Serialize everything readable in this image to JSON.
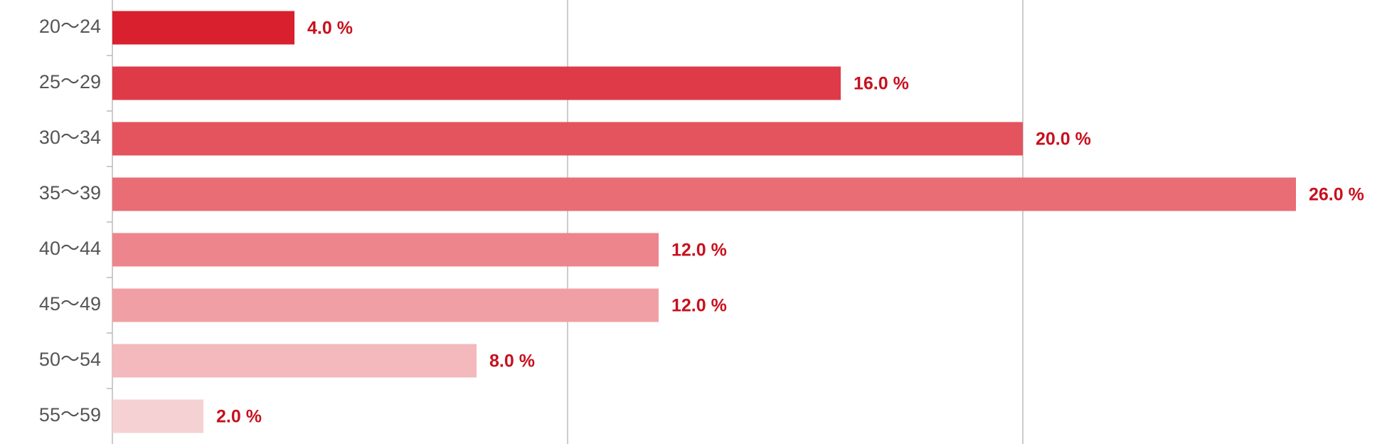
{
  "chart_data": {
    "type": "bar",
    "orientation": "horizontal",
    "categories": [
      "20〜24",
      "25〜29",
      "30〜34",
      "35〜39",
      "40〜44",
      "45〜49",
      "50〜54",
      "55〜59"
    ],
    "values": [
      4.0,
      16.0,
      20.0,
      26.0,
      12.0,
      12.0,
      8.0,
      2.0
    ],
    "value_labels": [
      "4.0 %",
      "16.0 %",
      "20.0 %",
      "26.0 %",
      "12.0 %",
      "12.0 %",
      "8.0 %",
      "2.0 %"
    ],
    "colors": [
      "#d9202f",
      "#df3a47",
      "#e3545e",
      "#e86d75",
      "#ec868c",
      "#f0a0a4",
      "#f3b9bc",
      "#f6d1d3"
    ],
    "xlim": [
      0,
      28
    ],
    "xticks": [
      0,
      10,
      20
    ],
    "grid": true
  }
}
